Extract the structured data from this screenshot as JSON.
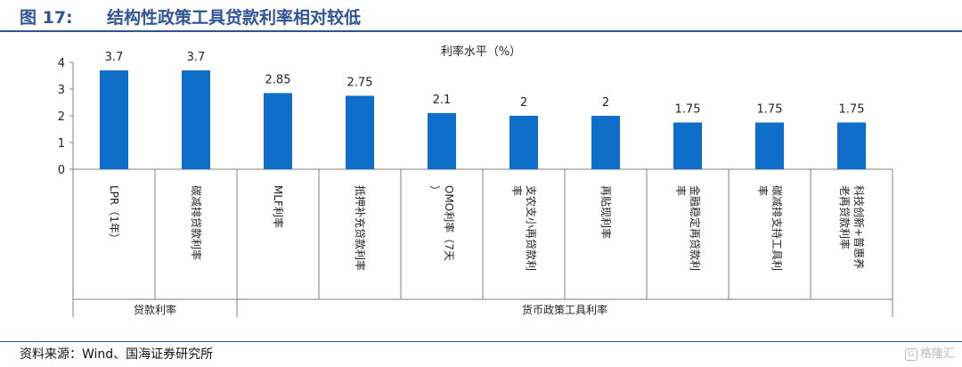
{
  "figure": {
    "number": "图 17:",
    "title": "结构性政策工具贷款利率相对较低",
    "source": "资料来源：Wind、国海证券研究所",
    "watermark": "格隆汇"
  },
  "colors": {
    "bar": "#0f6ec9",
    "axis": "#7f7f7f",
    "accent": "#2f5597"
  },
  "chart_data": {
    "type": "bar",
    "title": "利率水平（%）",
    "categories": [
      "LPR（1年）",
      "碳减排贷款利率",
      "MLF利率",
      "抵押补充贷款利率",
      "OMO利率（7天）",
      "支农支小再贷款利率",
      "再贴现利率",
      "金融稳定再贷款利率",
      "碳减排支持工具利率",
      "科技创新+普惠养老再贷款利率"
    ],
    "values": [
      3.7,
      3.7,
      2.85,
      2.75,
      2.1,
      2,
      2,
      1.75,
      1.75,
      1.75
    ],
    "value_labels": [
      "3.7",
      "3.7",
      "2.85",
      "2.75",
      "2.1",
      "2",
      "2",
      "1.75",
      "1.75",
      "1.75"
    ],
    "yticks": [
      "0",
      "1",
      "2",
      "3",
      "4"
    ],
    "ylim": [
      0,
      4
    ],
    "groups": [
      {
        "label": "贷款利率",
        "count": 2
      },
      {
        "label": "货币政策工具利率",
        "count": 8
      }
    ],
    "grid": false,
    "legend": "none"
  }
}
